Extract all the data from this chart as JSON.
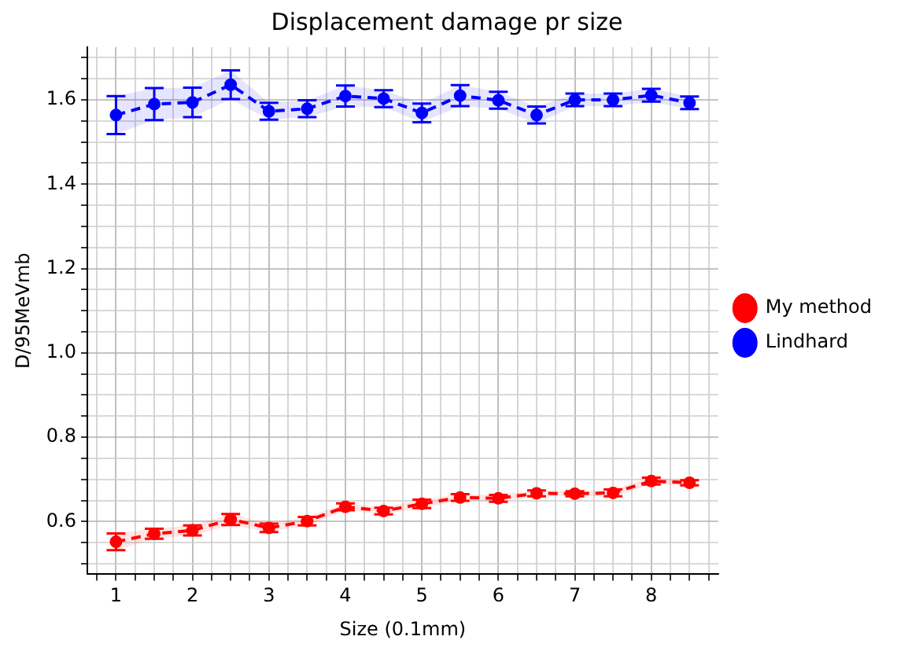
{
  "chart_data": {
    "type": "line",
    "title": "Displacement damage pr size",
    "xlabel": "Size (0.1mm)",
    "ylabel": "D/95MeVmb",
    "x": [
      1,
      1.5,
      2,
      2.5,
      3,
      3.5,
      4,
      4.5,
      5,
      5.5,
      6,
      6.5,
      7,
      7.5,
      8,
      8.5
    ],
    "series": [
      {
        "name": "My method",
        "color": "#ff0000",
        "values": [
          0.552,
          0.571,
          0.579,
          0.605,
          0.585,
          0.601,
          0.635,
          0.625,
          0.642,
          0.657,
          0.655,
          0.667,
          0.666,
          0.668,
          0.696,
          0.692
        ],
        "errors": [
          0.02,
          0.012,
          0.012,
          0.013,
          0.01,
          0.01,
          0.008,
          0.008,
          0.01,
          0.008,
          0.008,
          0.007,
          0.006,
          0.008,
          0.008,
          0.006
        ],
        "lower": [
          0.532,
          0.559,
          0.567,
          0.592,
          0.575,
          0.591,
          0.627,
          0.617,
          0.632,
          0.649,
          0.647,
          0.66,
          0.66,
          0.66,
          0.688,
          0.686
        ],
        "upper": [
          0.572,
          0.583,
          0.591,
          0.618,
          0.595,
          0.611,
          0.643,
          0.633,
          0.652,
          0.665,
          0.663,
          0.674,
          0.672,
          0.676,
          0.704,
          0.698
        ]
      },
      {
        "name": "Lindhard",
        "color": "#0000ff",
        "values": [
          1.564,
          1.59,
          1.594,
          1.636,
          1.573,
          1.579,
          1.609,
          1.603,
          1.569,
          1.61,
          1.599,
          1.564,
          1.6,
          1.6,
          1.611,
          1.593
        ],
        "errors": [
          0.045,
          0.038,
          0.035,
          0.034,
          0.02,
          0.02,
          0.025,
          0.02,
          0.022,
          0.025,
          0.02,
          0.02,
          0.015,
          0.015,
          0.015,
          0.015
        ],
        "lower": [
          1.519,
          1.552,
          1.559,
          1.602,
          1.553,
          1.559,
          1.584,
          1.583,
          1.547,
          1.585,
          1.579,
          1.544,
          1.585,
          1.585,
          1.596,
          1.578
        ],
        "upper": [
          1.609,
          1.628,
          1.629,
          1.67,
          1.593,
          1.599,
          1.634,
          1.623,
          1.591,
          1.635,
          1.619,
          1.584,
          1.615,
          1.615,
          1.626,
          1.608
        ]
      }
    ],
    "xlim": [
      0.625,
      8.875
    ],
    "xticks": [
      {
        "value": 0.75,
        "label": null
      },
      1,
      {
        "value": 1.25,
        "label": null
      },
      {
        "value": 1.5,
        "label": null
      },
      {
        "value": 1.75,
        "label": null
      },
      2,
      {
        "value": 2.25,
        "label": null
      },
      {
        "value": 2.5,
        "label": null
      },
      {
        "value": 2.75,
        "label": null
      },
      3,
      {
        "value": 3.25,
        "label": null
      },
      {
        "value": 3.5,
        "label": null
      },
      {
        "value": 3.75,
        "label": null
      },
      4,
      {
        "value": 4.25,
        "label": null
      },
      {
        "value": 4.5,
        "label": null
      },
      {
        "value": 4.75,
        "label": null
      },
      5,
      {
        "value": 5.25,
        "label": null
      },
      {
        "value": 5.5,
        "label": null
      },
      {
        "value": 5.75,
        "label": null
      },
      6,
      {
        "value": 6.25,
        "label": null
      },
      {
        "value": 6.5,
        "label": null
      },
      {
        "value": 6.75,
        "label": null
      },
      7,
      {
        "value": 7.25,
        "label": null
      },
      {
        "value": 7.5,
        "label": null
      },
      {
        "value": 7.75,
        "label": null
      },
      8,
      {
        "value": 8.25,
        "label": null
      },
      {
        "value": 8.5,
        "label": null
      },
      {
        "value": 8.75,
        "label": null
      }
    ],
    "ylim": [
      0.475,
      1.725
    ],
    "yticks": [
      {
        "value": 0.5,
        "label": null
      },
      {
        "value": 0.55,
        "label": null
      },
      {
        "value": 0.6,
        "label": "0.6"
      },
      {
        "value": 0.65,
        "label": null
      },
      {
        "value": 0.7,
        "label": null
      },
      {
        "value": 0.75,
        "label": null
      },
      {
        "value": 0.8,
        "label": "0.8"
      },
      {
        "value": 0.85,
        "label": null
      },
      {
        "value": 0.9,
        "label": null
      },
      {
        "value": 0.95,
        "label": null
      },
      {
        "value": 1.0,
        "label": "1.0"
      },
      {
        "value": 1.05,
        "label": null
      },
      {
        "value": 1.1,
        "label": null
      },
      {
        "value": 1.15,
        "label": null
      },
      {
        "value": 1.2,
        "label": "1.2"
      },
      {
        "value": 1.25,
        "label": null
      },
      {
        "value": 1.3,
        "label": null
      },
      {
        "value": 1.35,
        "label": null
      },
      {
        "value": 1.4,
        "label": "1.4"
      },
      {
        "value": 1.45,
        "label": null
      },
      {
        "value": 1.5,
        "label": null
      },
      {
        "value": 1.55,
        "label": null
      },
      {
        "value": 1.6,
        "label": "1.6"
      },
      {
        "value": 1.65,
        "label": null
      },
      {
        "value": 1.7,
        "label": null
      }
    ],
    "grid": true,
    "legend": "right",
    "marker": "circle",
    "line_style": "dashed"
  }
}
